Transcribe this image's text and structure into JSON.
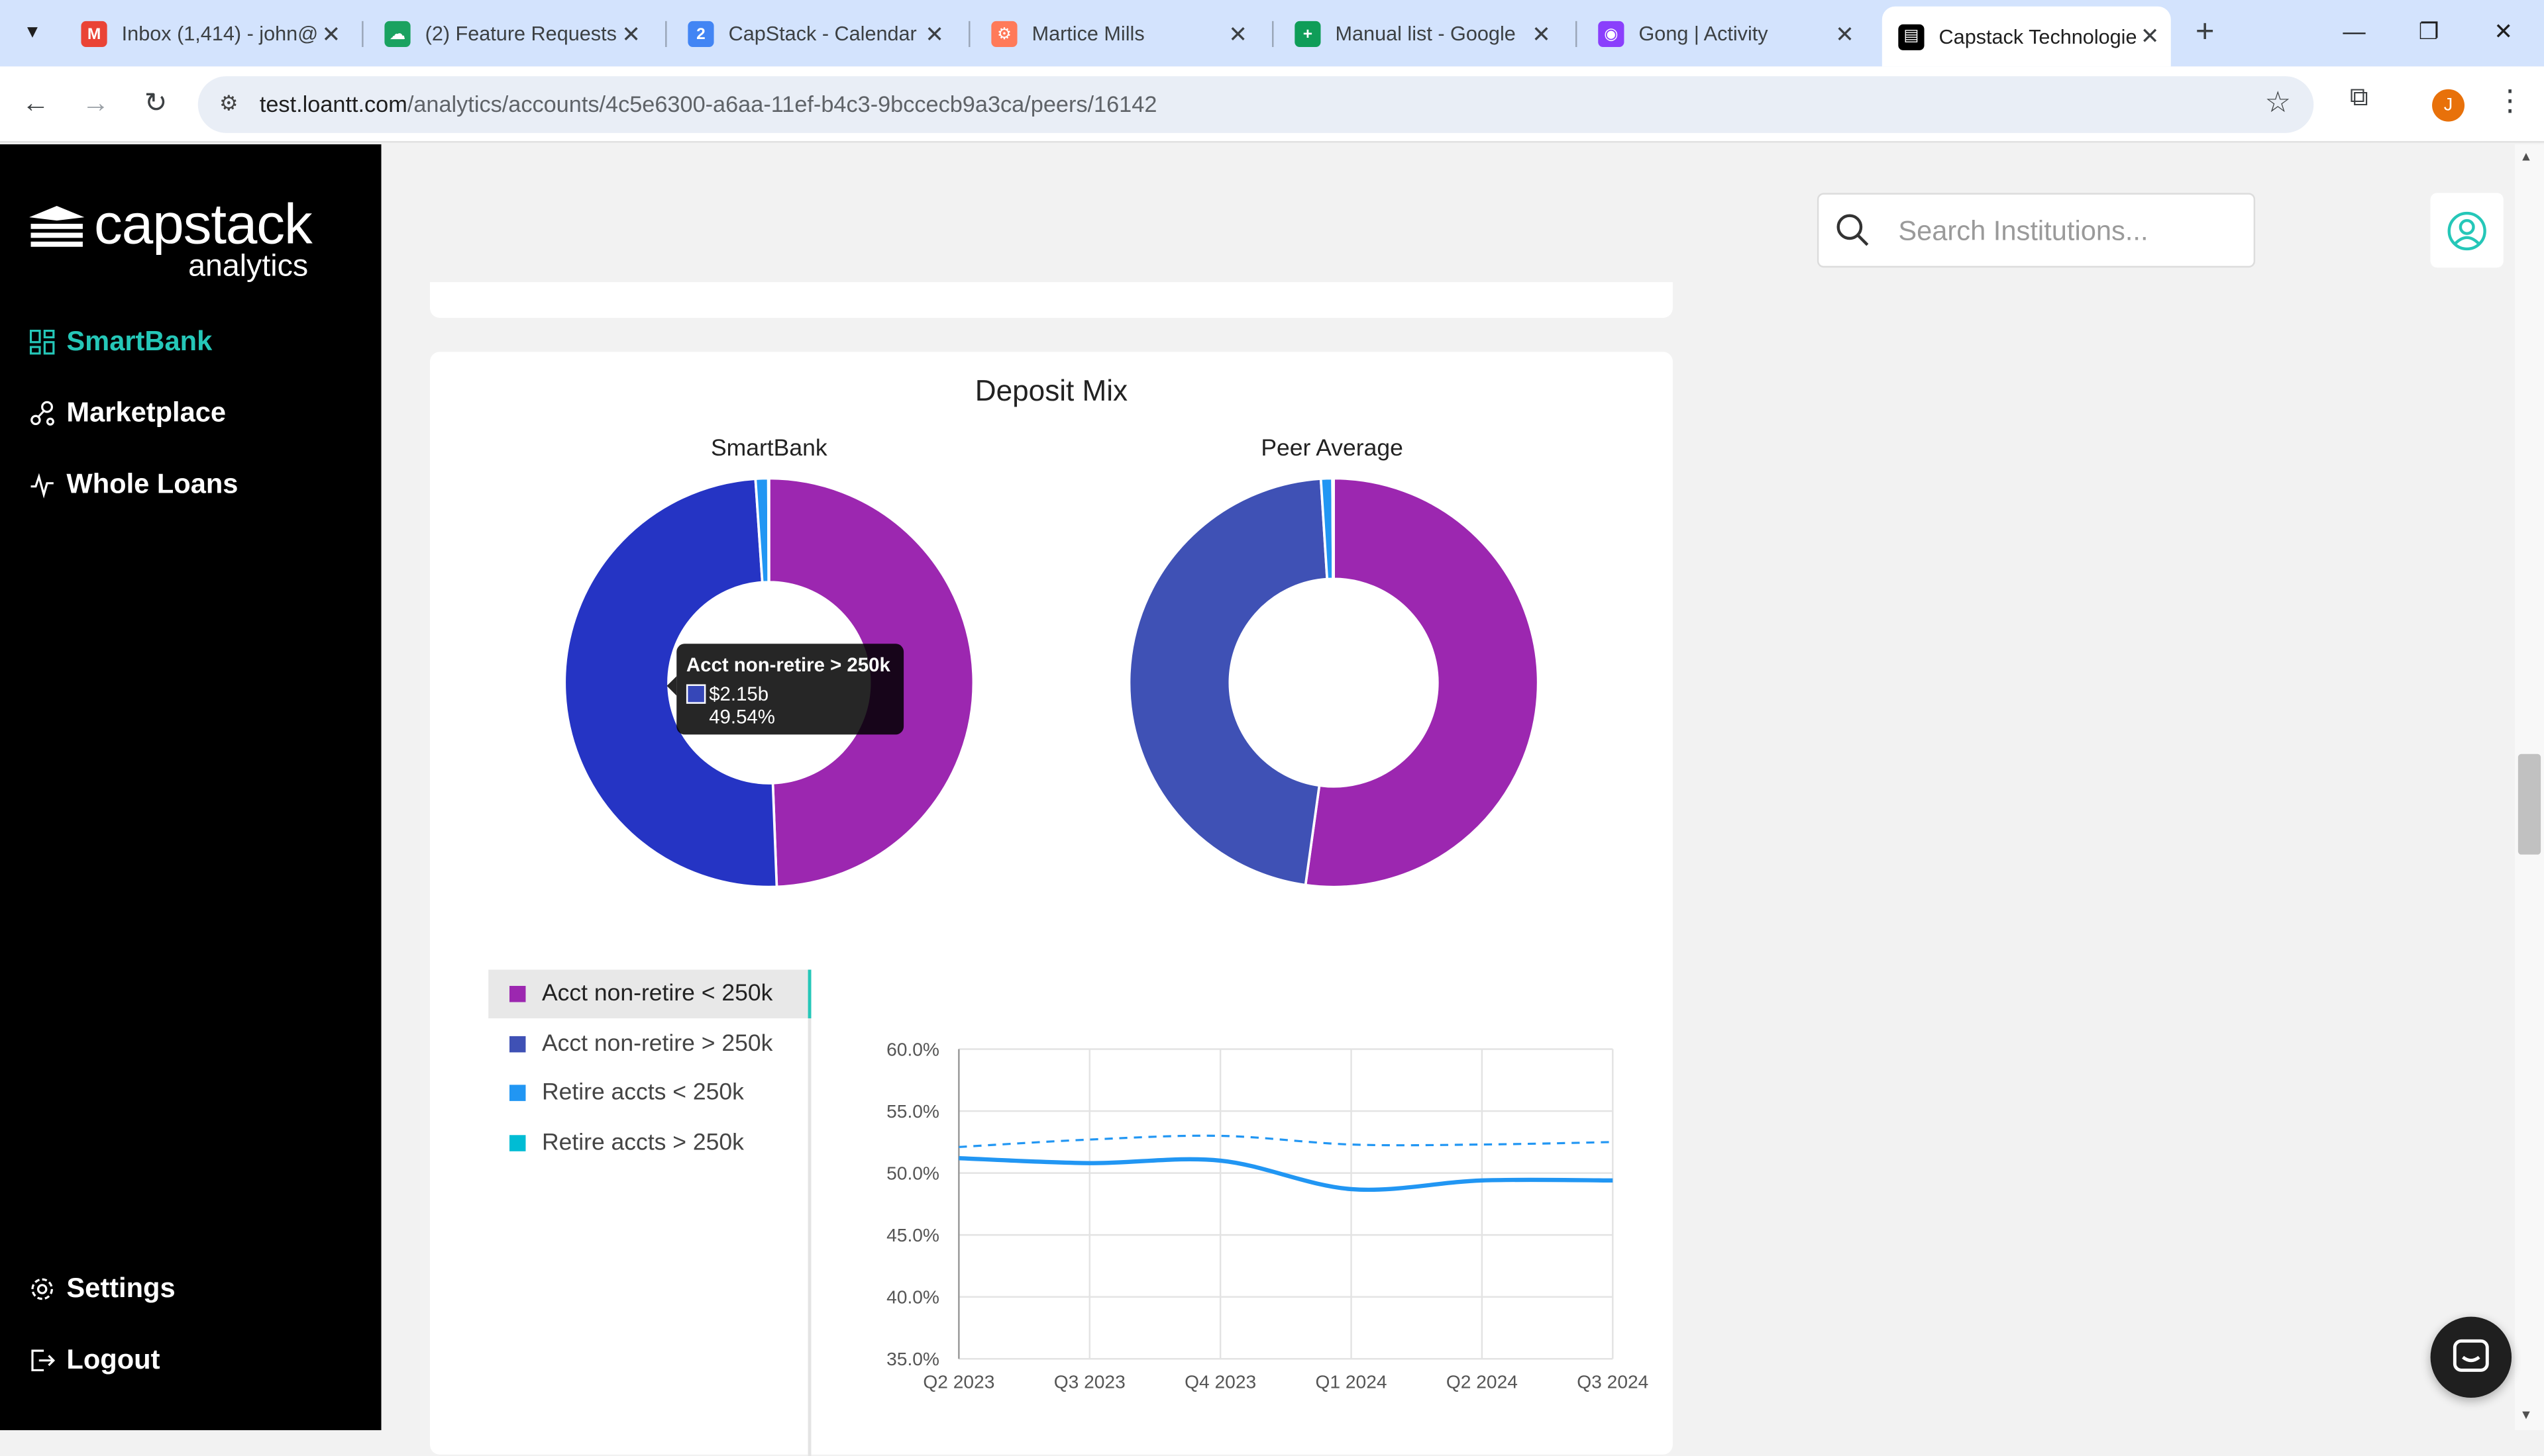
{
  "browser": {
    "tabs": [
      {
        "title": "Inbox (1,414) - john@",
        "favicon": "gmail-icon",
        "color": "#ea4335"
      },
      {
        "title": "(2) Feature Requests",
        "favicon": "cloud-icon",
        "color": "#1aa260"
      },
      {
        "title": "CapStack - Calendar",
        "favicon": "calendar-icon",
        "color": "#4285f4"
      },
      {
        "title": "Martice Mills",
        "favicon": "hubspot-icon",
        "color": "#ff7a59"
      },
      {
        "title": "Manual list - Google",
        "favicon": "sheets-icon",
        "color": "#0f9d58"
      },
      {
        "title": "Gong | Activity",
        "favicon": "gong-icon",
        "color": "#8a3ffc"
      },
      {
        "title": "Capstack Technologie",
        "favicon": "capstack-icon",
        "color": "#000000"
      }
    ],
    "active_tab": 6,
    "url_host": "test.loantt.com",
    "url_path": "/analytics/accounts/4c5e6300-a6aa-11ef-b4c3-9bccecb9a3ca/peers/16142",
    "profile_initial": "J"
  },
  "sidebar": {
    "logo_word1": "capstack",
    "logo_word2": "analytics",
    "items": [
      {
        "label": "SmartBank",
        "icon": "dashboard-icon"
      },
      {
        "label": "Marketplace",
        "icon": "network-icon"
      },
      {
        "label": "Whole Loans",
        "icon": "activity-icon"
      }
    ],
    "bottom_items": [
      {
        "label": "Settings",
        "icon": "gear-icon"
      },
      {
        "label": "Logout",
        "icon": "logout-icon"
      }
    ],
    "accent": "#25c7b8"
  },
  "header": {
    "search_placeholder": "Search Institutions..."
  },
  "deposit_mix": {
    "title": "Deposit Mix",
    "smartbank_title": "SmartBank",
    "peer_title": "Peer Average",
    "tooltip": {
      "title": "Acct non-retire > 250k",
      "value": "$2.15b",
      "percent": "49.54%"
    },
    "legend": [
      {
        "label": "Acct non-retire < 250k",
        "color": "#9c27b0"
      },
      {
        "label": "Acct non-retire > 250k",
        "color": "#3f51b5"
      },
      {
        "label": "Retire accts < 250k",
        "color": "#2196f3"
      },
      {
        "label": "Retire accts > 250k",
        "color": "#00bcd4"
      }
    ],
    "selected_legend": 0
  },
  "chart_data": [
    {
      "type": "pie",
      "title": "SmartBank",
      "labels": [
        "Acct non-retire < 250k",
        "Acct non-retire > 250k",
        "Retire accts < 250k",
        "Retire accts > 250k"
      ],
      "values": [
        49.4,
        49.54,
        1.0,
        0.06
      ],
      "colors": [
        "#9c27b0",
        "#2534c4",
        "#2196f3",
        "#00bcd4"
      ]
    },
    {
      "type": "pie",
      "title": "Peer Average",
      "labels": [
        "Acct non-retire < 250k",
        "Acct non-retire > 250k",
        "Retire accts < 250k",
        "Retire accts > 250k"
      ],
      "values": [
        52.2,
        46.8,
        0.9,
        0.1
      ],
      "colors": [
        "#9c27b0",
        "#3f51b5",
        "#2196f3",
        "#00bcd4"
      ]
    },
    {
      "type": "line",
      "categories": [
        "Q2 2023",
        "Q3 2023",
        "Q4 2023",
        "Q1 2024",
        "Q2 2024",
        "Q3 2024"
      ],
      "ylim": [
        35,
        60
      ],
      "yticks": [
        "35.0%",
        "40.0%",
        "45.0%",
        "50.0%",
        "55.0%",
        "60.0%"
      ],
      "grid": true,
      "series": [
        {
          "values": [
            51.2,
            50.8,
            51.0,
            48.7,
            49.4,
            49.4
          ],
          "style": "solid",
          "color": "#2196f3"
        },
        {
          "values": [
            52.1,
            52.7,
            53.0,
            52.3,
            52.3,
            52.5
          ],
          "style": "dashed",
          "color": "#2196f3"
        }
      ]
    }
  ]
}
